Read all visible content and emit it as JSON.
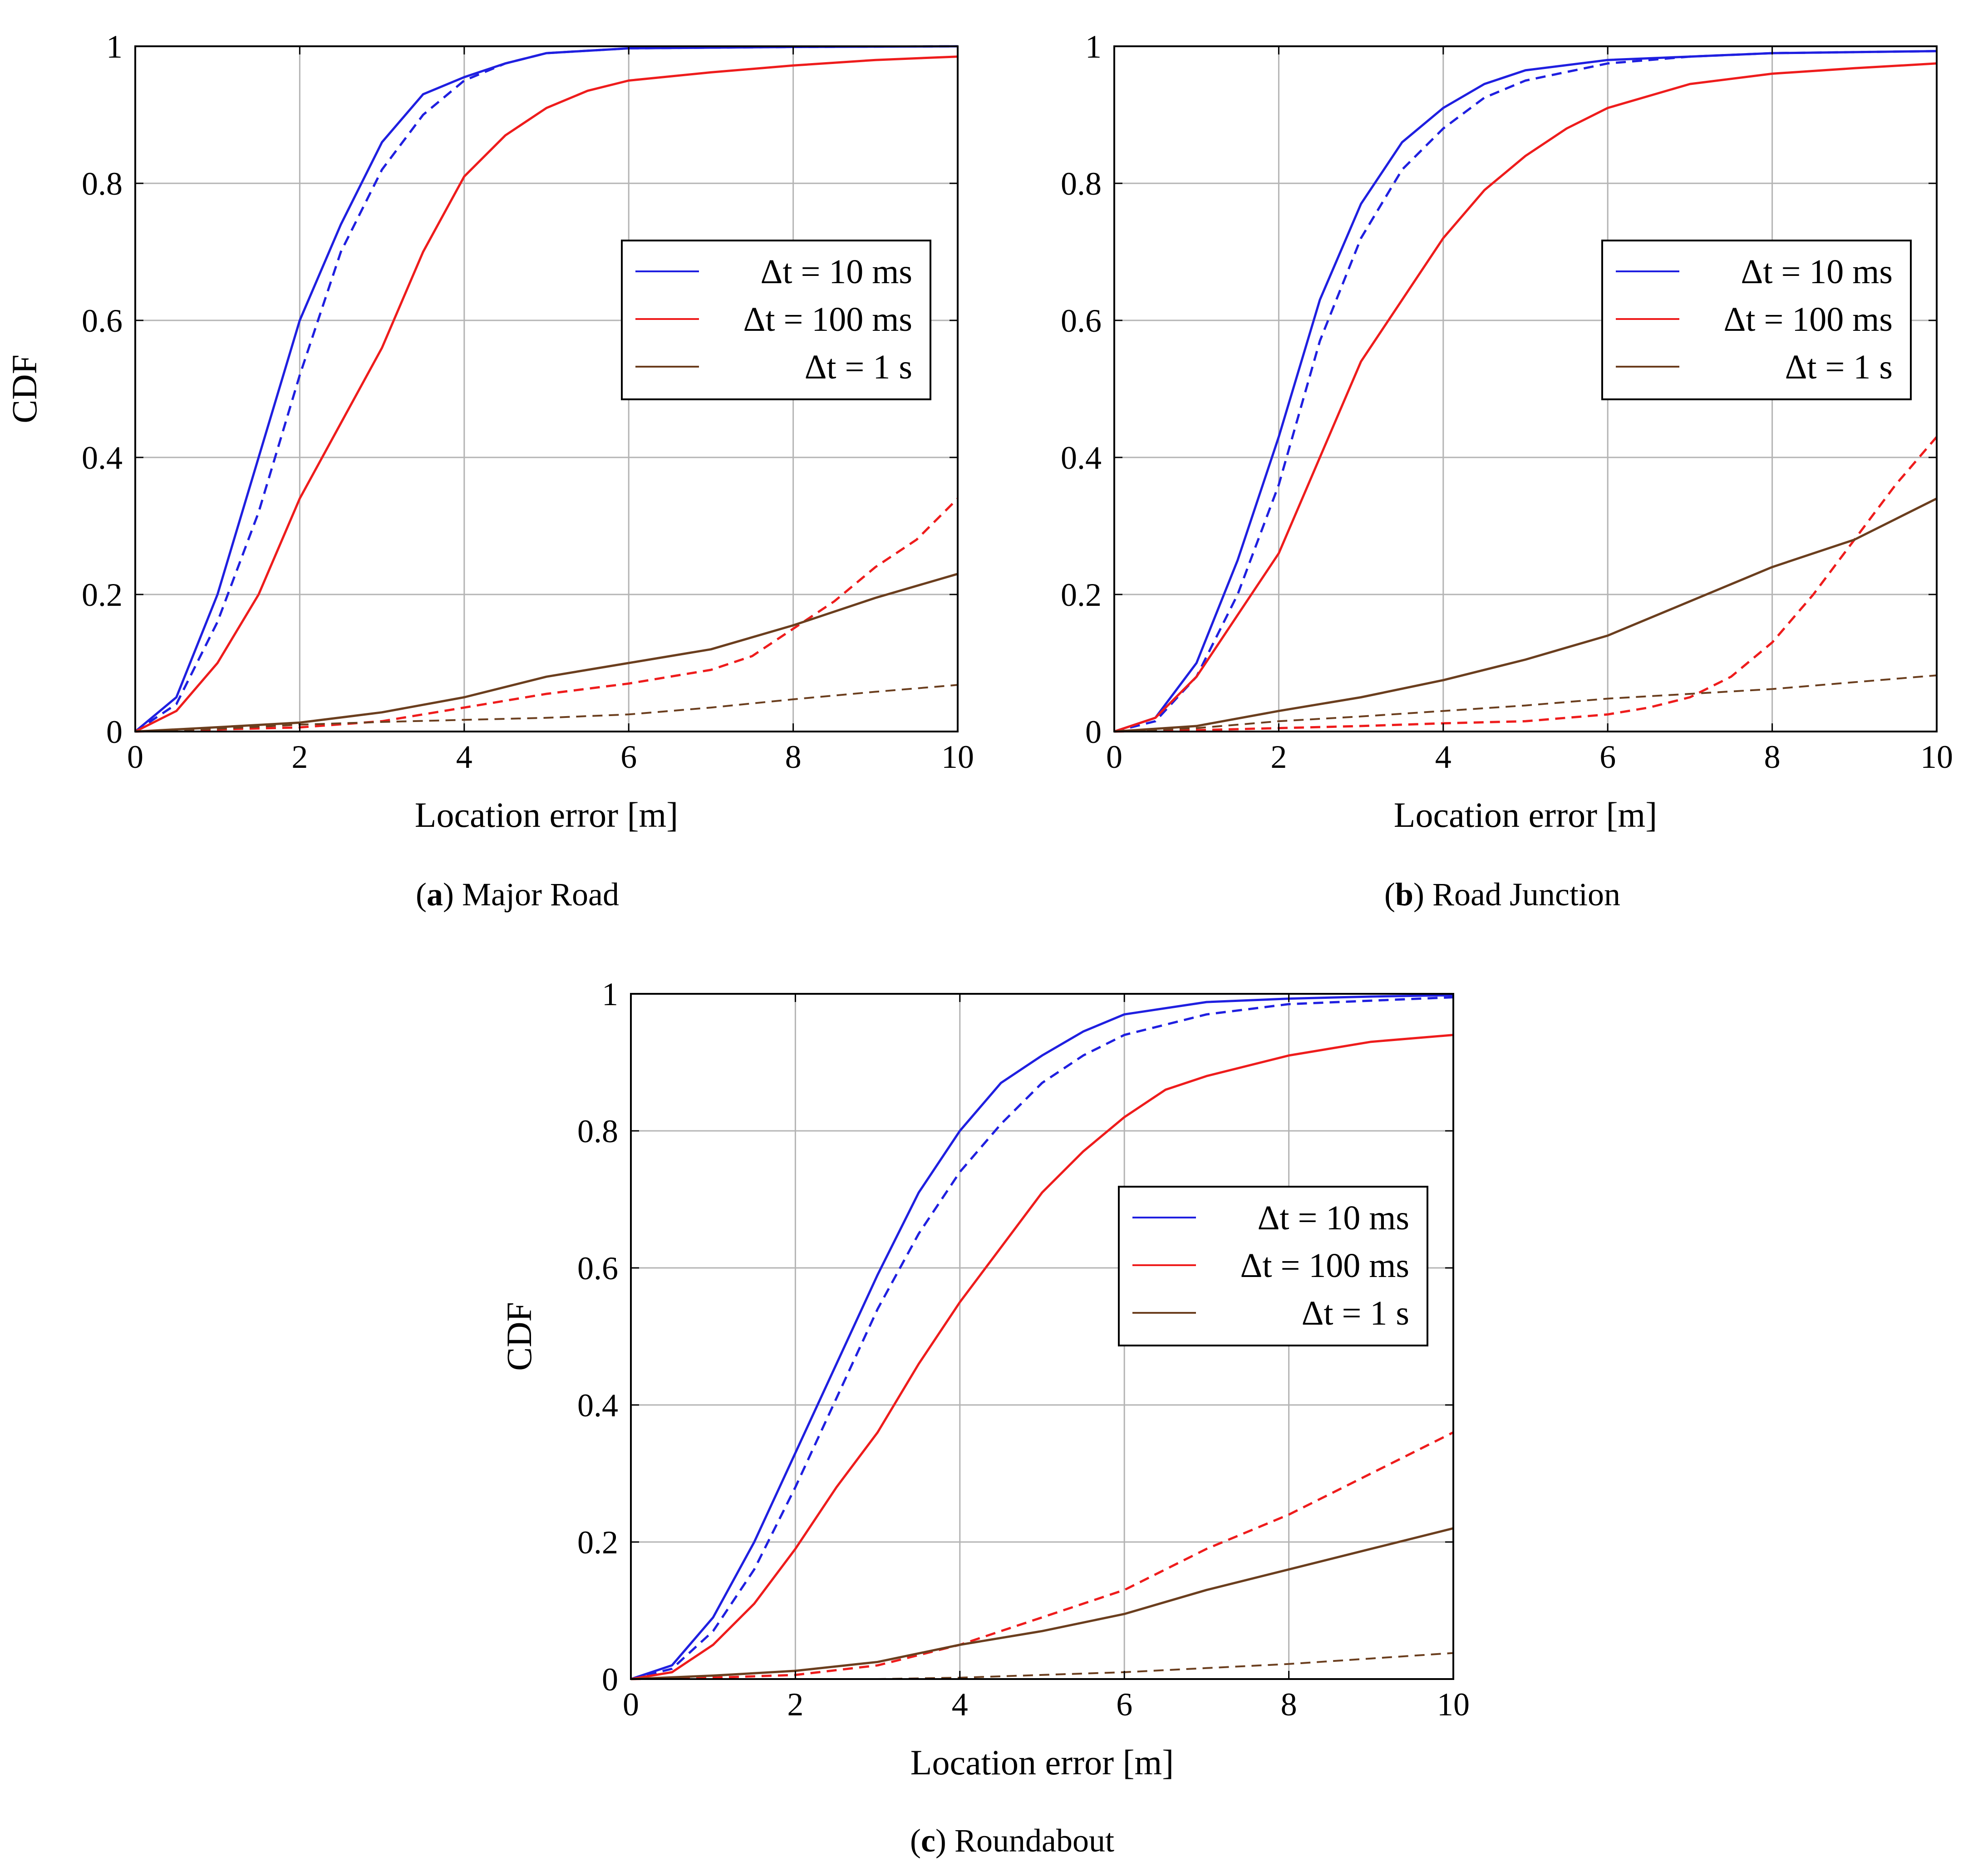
{
  "figure": {
    "captions": [
      {
        "label": "a",
        "text": "Major Road"
      },
      {
        "label": "b",
        "text": "Road Junction"
      },
      {
        "label": "c",
        "text": "Roundabout"
      }
    ]
  },
  "colors": {
    "blue": "#1f1fe0",
    "red": "#ee1c1c",
    "brown": "#6b3e1e",
    "grid": "#b4b4b4"
  },
  "chart_data": [
    {
      "type": "line",
      "title": "Major Road",
      "xlabel": "Location error [m]",
      "ylabel": "CDF",
      "xlim": [
        0,
        10
      ],
      "ylim": [
        0,
        1
      ],
      "xticks": [
        "0",
        "2",
        "4",
        "6",
        "8",
        "10"
      ],
      "yticks": [
        "0",
        "0.2",
        "0.4",
        "0.6",
        "0.8",
        "1"
      ],
      "grid": true,
      "legend_position": "center-right",
      "legend": [
        "Δt = 10 ms",
        "Δt = 100 ms",
        "Δt = 1 s"
      ],
      "series": [
        {
          "name": "Δt = 10 ms",
          "color": "blue",
          "dashed": false,
          "x": [
            0,
            0.5,
            1,
            1.5,
            2,
            2.5,
            3,
            3.5,
            4,
            4.5,
            5,
            6,
            7,
            8,
            10
          ],
          "y": [
            0,
            0.05,
            0.2,
            0.4,
            0.6,
            0.74,
            0.86,
            0.93,
            0.955,
            0.975,
            0.99,
            0.997,
            0.998,
            0.999,
            1.0
          ]
        },
        {
          "name": "Δt = 10 ms (dashed)",
          "color": "blue",
          "dashed": true,
          "x": [
            0,
            0.5,
            1,
            1.5,
            2,
            2.5,
            3,
            3.5,
            4,
            4.5,
            5,
            6,
            7,
            8,
            10
          ],
          "y": [
            0,
            0.04,
            0.16,
            0.32,
            0.52,
            0.7,
            0.82,
            0.9,
            0.95,
            0.975,
            0.99,
            0.997,
            0.998,
            0.999,
            1.0
          ]
        },
        {
          "name": "Δt = 100 ms",
          "color": "red",
          "dashed": false,
          "x": [
            0,
            0.5,
            1,
            1.5,
            2,
            2.5,
            3,
            3.5,
            4,
            4.5,
            5,
            5.5,
            6,
            7,
            8,
            9,
            10
          ],
          "y": [
            0,
            0.03,
            0.1,
            0.2,
            0.34,
            0.45,
            0.56,
            0.7,
            0.81,
            0.87,
            0.91,
            0.935,
            0.95,
            0.962,
            0.972,
            0.98,
            0.985
          ]
        },
        {
          "name": "Δt = 100 ms (dashed)",
          "color": "red",
          "dashed": true,
          "x": [
            0,
            1,
            2,
            3,
            4,
            5,
            6,
            7,
            7.5,
            8,
            8.5,
            9,
            9.5,
            10
          ],
          "y": [
            0,
            0.003,
            0.006,
            0.015,
            0.035,
            0.055,
            0.07,
            0.09,
            0.11,
            0.15,
            0.19,
            0.24,
            0.28,
            0.34
          ]
        },
        {
          "name": "Δt = 1 s",
          "color": "brown",
          "dashed": false,
          "x": [
            0,
            0.8,
            2,
            3,
            4,
            5,
            6,
            7,
            8,
            9,
            10
          ],
          "y": [
            0,
            0.005,
            0.013,
            0.028,
            0.05,
            0.08,
            0.1,
            0.12,
            0.155,
            0.195,
            0.23
          ]
        },
        {
          "name": "Δt = 1 s (dashed)",
          "color": "brown",
          "dashed": true,
          "x": [
            0,
            0.5,
            1,
            2,
            3,
            4,
            5,
            6,
            7,
            8,
            9,
            10
          ],
          "y": [
            0,
            0.002,
            0.004,
            0.01,
            0.014,
            0.017,
            0.02,
            0.025,
            0.035,
            0.047,
            0.058,
            0.068
          ]
        }
      ]
    },
    {
      "type": "line",
      "title": "Road Junction",
      "xlabel": "Location error [m]",
      "ylabel": "",
      "xlim": [
        0,
        10
      ],
      "ylim": [
        0,
        1
      ],
      "xticks": [
        "0",
        "2",
        "4",
        "6",
        "8",
        "10"
      ],
      "yticks": [
        "0",
        "0.2",
        "0.4",
        "0.6",
        "0.8",
        "1"
      ],
      "grid": true,
      "legend_position": "center-right",
      "legend": [
        "Δt = 10 ms",
        "Δt = 100 ms",
        "Δt = 1 s"
      ],
      "series": [
        {
          "name": "Δt = 10 ms",
          "color": "blue",
          "dashed": false,
          "x": [
            0,
            0.5,
            1,
            1.5,
            2,
            2.5,
            3,
            3.5,
            4,
            4.5,
            5,
            6,
            7,
            8,
            10
          ],
          "y": [
            0,
            0.02,
            0.1,
            0.25,
            0.43,
            0.63,
            0.77,
            0.86,
            0.91,
            0.945,
            0.965,
            0.98,
            0.985,
            0.99,
            0.993
          ]
        },
        {
          "name": "Δt = 10 ms (dashed)",
          "color": "blue",
          "dashed": true,
          "x": [
            0,
            0.5,
            1,
            1.5,
            2,
            2.5,
            3,
            3.5,
            4,
            4.5,
            5,
            6,
            7,
            8,
            10
          ],
          "y": [
            0,
            0.015,
            0.08,
            0.2,
            0.36,
            0.57,
            0.72,
            0.82,
            0.88,
            0.925,
            0.95,
            0.975,
            0.985,
            0.99,
            0.993
          ]
        },
        {
          "name": "Δt = 100 ms",
          "color": "red",
          "dashed": false,
          "x": [
            0,
            0.5,
            1,
            1.5,
            2,
            2.5,
            3,
            3.5,
            4,
            4.5,
            5,
            5.5,
            6,
            7,
            8,
            9,
            10
          ],
          "y": [
            0,
            0.02,
            0.08,
            0.17,
            0.26,
            0.4,
            0.54,
            0.63,
            0.72,
            0.79,
            0.84,
            0.88,
            0.91,
            0.945,
            0.96,
            0.968,
            0.975
          ]
        },
        {
          "name": "Δt = 100 ms (dashed)",
          "color": "red",
          "dashed": true,
          "x": [
            0,
            1,
            2,
            3,
            4,
            5,
            6,
            6.5,
            7,
            7.5,
            8,
            8.5,
            9,
            9.5,
            10
          ],
          "y": [
            0,
            0.002,
            0.005,
            0.008,
            0.012,
            0.015,
            0.025,
            0.035,
            0.05,
            0.08,
            0.13,
            0.2,
            0.28,
            0.36,
            0.43
          ]
        },
        {
          "name": "Δt = 1 s",
          "color": "brown",
          "dashed": false,
          "x": [
            0,
            1,
            2,
            3,
            4,
            5,
            6,
            7,
            8,
            9,
            10
          ],
          "y": [
            0,
            0.008,
            0.03,
            0.05,
            0.075,
            0.105,
            0.14,
            0.19,
            0.24,
            0.28,
            0.34
          ]
        },
        {
          "name": "Δt = 1 s (dashed)",
          "color": "brown",
          "dashed": true,
          "x": [
            0,
            1,
            2,
            3,
            4,
            5,
            6,
            7,
            8,
            9,
            10
          ],
          "y": [
            0,
            0.005,
            0.015,
            0.022,
            0.03,
            0.038,
            0.048,
            0.055,
            0.062,
            0.072,
            0.082
          ]
        }
      ]
    },
    {
      "type": "line",
      "title": "Roundabout",
      "xlabel": "Location error [m]",
      "ylabel": "CDF",
      "xlim": [
        0,
        10
      ],
      "ylim": [
        0,
        1
      ],
      "xticks": [
        "0",
        "2",
        "4",
        "6",
        "8",
        "10"
      ],
      "yticks": [
        "0",
        "0.2",
        "0.4",
        "0.6",
        "0.8",
        "1"
      ],
      "grid": true,
      "legend_position": "center-right",
      "legend": [
        "Δt = 10 ms",
        "Δt = 100 ms",
        "Δt = 1 s"
      ],
      "series": [
        {
          "name": "Δt = 10 ms",
          "color": "blue",
          "dashed": false,
          "x": [
            0,
            0.5,
            1,
            1.5,
            2,
            2.5,
            3,
            3.5,
            4,
            4.5,
            5,
            5.5,
            6,
            7,
            8,
            9,
            10
          ],
          "y": [
            0,
            0.02,
            0.09,
            0.2,
            0.33,
            0.46,
            0.59,
            0.71,
            0.8,
            0.87,
            0.91,
            0.945,
            0.97,
            0.988,
            0.993,
            0.996,
            0.998
          ]
        },
        {
          "name": "Δt = 10 ms (dashed)",
          "color": "blue",
          "dashed": true,
          "x": [
            0,
            0.5,
            1,
            1.5,
            2,
            2.5,
            3,
            3.5,
            4,
            4.5,
            5,
            5.5,
            6,
            7,
            8,
            9,
            10
          ],
          "y": [
            0,
            0.015,
            0.07,
            0.16,
            0.28,
            0.41,
            0.54,
            0.65,
            0.74,
            0.81,
            0.87,
            0.91,
            0.94,
            0.97,
            0.985,
            0.99,
            0.995
          ]
        },
        {
          "name": "Δt = 100 ms",
          "color": "red",
          "dashed": false,
          "x": [
            0,
            0.5,
            1,
            1.5,
            2,
            2.5,
            3,
            3.5,
            4,
            4.5,
            5,
            5.5,
            6,
            6.5,
            7,
            8,
            9,
            10
          ],
          "y": [
            0,
            0.01,
            0.05,
            0.11,
            0.19,
            0.28,
            0.36,
            0.46,
            0.55,
            0.63,
            0.71,
            0.77,
            0.82,
            0.86,
            0.88,
            0.91,
            0.93,
            0.94
          ]
        },
        {
          "name": "Δt = 100 ms (dashed)",
          "color": "red",
          "dashed": true,
          "x": [
            0,
            1,
            2,
            3,
            4,
            5,
            6,
            7,
            8,
            9,
            10
          ],
          "y": [
            0,
            0.002,
            0.006,
            0.02,
            0.05,
            0.09,
            0.13,
            0.19,
            0.24,
            0.3,
            0.36
          ]
        },
        {
          "name": "Δt = 1 s",
          "color": "brown",
          "dashed": false,
          "x": [
            0,
            1,
            2,
            3,
            4,
            5,
            6,
            7,
            8,
            9,
            10
          ],
          "y": [
            0,
            0.005,
            0.012,
            0.025,
            0.05,
            0.07,
            0.095,
            0.13,
            0.16,
            0.19,
            0.22
          ]
        },
        {
          "name": "Δt = 1 s (dashed)",
          "color": "brown",
          "dashed": true,
          "x": [
            0,
            1,
            2,
            3,
            4,
            5,
            6,
            7,
            8,
            9,
            10
          ],
          "y": [
            0,
            0,
            0,
            0,
            0.002,
            0.006,
            0.01,
            0.016,
            0.022,
            0.03,
            0.038
          ]
        }
      ]
    }
  ]
}
